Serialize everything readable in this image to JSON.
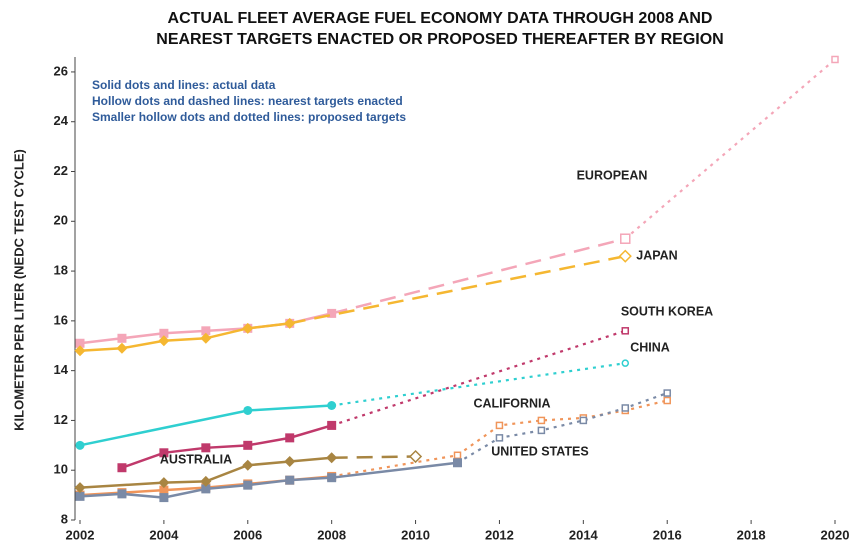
{
  "chart_data": {
    "type": "line",
    "title": [
      "ACTUAL FLEET AVERAGE FUEL ECONOMY DATA THROUGH 2008 AND",
      "NEAREST TARGETS ENACTED OR PROPOSED THEREAFTER BY REGION"
    ],
    "y_label": "KILOMETER PER LITER (NEDC TEST CYCLE)",
    "notes": [
      "Solid dots and lines: actual data",
      "Hollow dots and dashed lines: nearest targets enacted",
      "Smaller hollow dots and dotted lines: proposed targets"
    ],
    "xlim": [
      2002,
      2020
    ],
    "xticks": [
      2002,
      2004,
      2006,
      2008,
      2010,
      2012,
      2014,
      2016,
      2018,
      2020
    ],
    "ylim": [
      8,
      26.6
    ],
    "yticks": [
      8,
      10,
      12,
      14,
      16,
      18,
      20,
      22,
      24,
      26
    ],
    "series": [
      {
        "name": "EUROPEAN",
        "color": "#f4a6b8",
        "actual": {
          "x": [
            2002,
            2003,
            2004,
            2005,
            2006,
            2007,
            2008
          ],
          "values": [
            15.1,
            15.3,
            15.5,
            15.6,
            15.7,
            15.9,
            16.3
          ]
        },
        "enacted": {
          "x": [
            2015
          ],
          "values": [
            19.3
          ]
        },
        "proposed": {
          "x": [
            2020
          ],
          "values": [
            26.5
          ]
        }
      },
      {
        "name": "JAPAN",
        "color": "#f5b731",
        "actual": {
          "x": [
            2002,
            2003,
            2004,
            2005,
            2006,
            2007
          ],
          "values": [
            14.8,
            14.9,
            15.2,
            15.3,
            15.7,
            15.9
          ]
        },
        "enacted": {
          "x": [
            2015
          ],
          "values": [
            18.6
          ]
        }
      },
      {
        "name": "SOUTH KOREA",
        "color": "#c0396b",
        "actual": {
          "x": [
            2003,
            2004,
            2005,
            2006,
            2007,
            2008
          ],
          "values": [
            10.1,
            10.7,
            10.9,
            11.0,
            11.3,
            11.8
          ]
        },
        "proposed": {
          "x": [
            2015
          ],
          "values": [
            15.6
          ]
        }
      },
      {
        "name": "CHINA",
        "color": "#2fcfd0",
        "actual": {
          "x": [
            2002,
            2006,
            2008
          ],
          "values": [
            11.0,
            12.4,
            12.6
          ]
        },
        "proposed": {
          "x": [
            2015
          ],
          "values": [
            14.3
          ]
        }
      },
      {
        "name": "CALIFORNIA",
        "color": "#f0955a",
        "actual": {
          "x": [
            2002,
            2003,
            2004,
            2005,
            2006,
            2007,
            2008
          ],
          "values": [
            9.0,
            9.1,
            9.2,
            9.3,
            9.45,
            9.6,
            9.75
          ]
        },
        "proposed": {
          "x": [
            2011,
            2012,
            2013,
            2014,
            2015,
            2016
          ],
          "values": [
            10.6,
            11.8,
            12.0,
            12.1,
            12.4,
            12.8
          ]
        }
      },
      {
        "name": "UNITED STATES",
        "color": "#7a8aa6",
        "actual": {
          "x": [
            2002,
            2003,
            2004,
            2005,
            2006,
            2007,
            2008,
            2011
          ],
          "values": [
            8.95,
            9.05,
            8.9,
            9.25,
            9.4,
            9.6,
            9.7,
            10.3
          ]
        },
        "proposed": {
          "x": [
            2012,
            2013,
            2014,
            2015,
            2016
          ],
          "values": [
            11.3,
            11.6,
            12.0,
            12.5,
            13.1
          ]
        }
      },
      {
        "name": "AUSTRALIA",
        "color": "#a88542",
        "actual": {
          "x": [
            2002,
            2004,
            2005,
            2006,
            2007,
            2008
          ],
          "values": [
            9.3,
            9.5,
            9.55,
            10.2,
            10.35,
            10.5
          ]
        },
        "enacted": {
          "x": [
            2010
          ],
          "values": [
            10.55
          ]
        }
      }
    ]
  }
}
